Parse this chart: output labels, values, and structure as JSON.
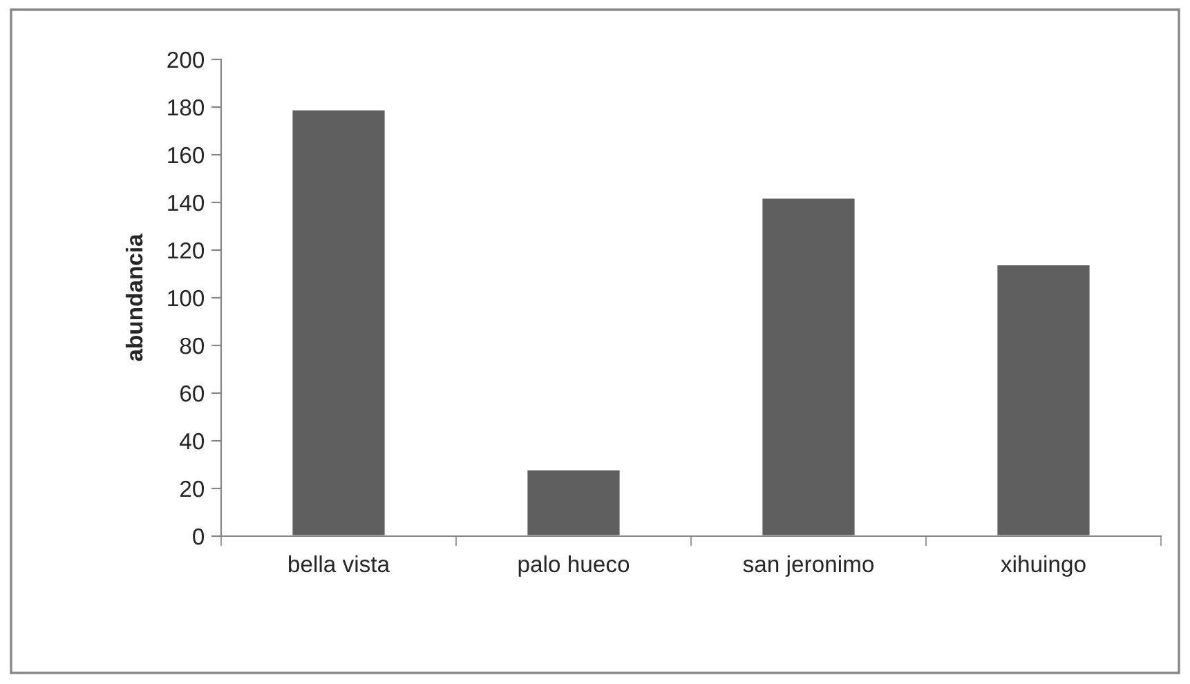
{
  "chart_data": {
    "type": "bar",
    "ylabel": "abundancia",
    "categories": [
      "bella vista",
      "palo hueco",
      "san jeronimo",
      "xihuingo"
    ],
    "values": [
      179,
      28,
      142,
      114
    ],
    "color": "#5f5f5f",
    "ylim": [
      0,
      200
    ],
    "yticks": [
      0,
      20,
      40,
      60,
      80,
      100,
      120,
      140,
      160,
      180,
      200
    ],
    "grid": false,
    "legend": false
  }
}
